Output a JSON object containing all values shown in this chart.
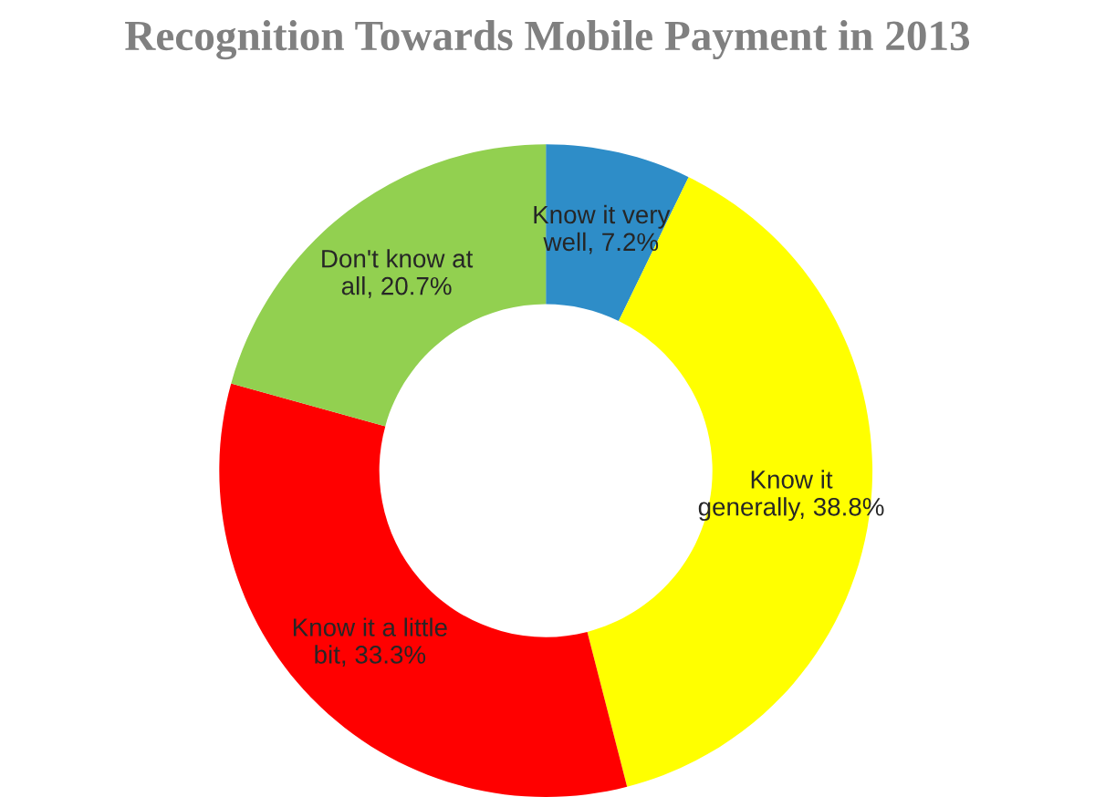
{
  "chart_data": {
    "type": "donut",
    "title": "Recognition Towards Mobile Payment in 2013",
    "categories": [
      "Know it very well",
      "Know it generally",
      "Know it a little bit",
      "Don't know at all"
    ],
    "values": [
      7.2,
      38.8,
      33.3,
      20.7
    ],
    "colors": [
      "#2e8dc8",
      "#ffff00",
      "#ff0000",
      "#92d050"
    ],
    "value_labels": [
      "7.2%",
      "38.8%",
      "33.3%",
      "20.7%"
    ]
  }
}
